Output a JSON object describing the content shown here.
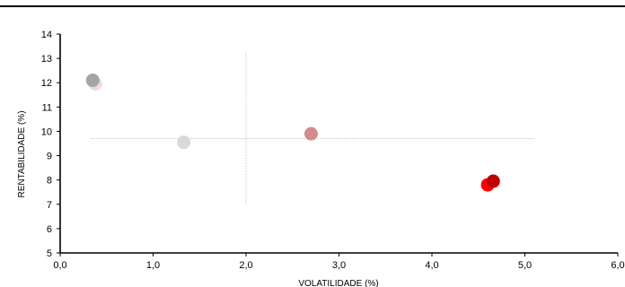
{
  "chart_data": {
    "type": "scatter",
    "title": "",
    "xlabel": "VOLATILIDADE (%)",
    "ylabel": "RENTABILIDADE (%)",
    "xlim": [
      0,
      6
    ],
    "ylim": [
      5,
      14
    ],
    "x_ticks": [
      "0,0",
      "1,0",
      "2,0",
      "3,0",
      "4,0",
      "5,0",
      "6,0"
    ],
    "y_ticks": [
      "5",
      "6",
      "7",
      "8",
      "9",
      "10",
      "11",
      "12",
      "13",
      "14"
    ],
    "grid": false,
    "reference_lines": {
      "x": 2.0,
      "y": 9.7,
      "x_extent": [
        0.33,
        5.1
      ],
      "y_extent": [
        7.0,
        13.3
      ]
    },
    "points": [
      {
        "x": 0.38,
        "y": 11.95,
        "color": "#f2d9dc"
      },
      {
        "x": 0.35,
        "y": 12.1,
        "color": "#a5a5a5"
      },
      {
        "x": 1.33,
        "y": 9.55,
        "color": "#d9d9d9"
      },
      {
        "x": 2.7,
        "y": 9.9,
        "color": "#d38c8c"
      },
      {
        "x": 4.6,
        "y": 7.8,
        "color": "#ff0000"
      },
      {
        "x": 4.66,
        "y": 7.95,
        "color": "#c00000"
      }
    ]
  }
}
